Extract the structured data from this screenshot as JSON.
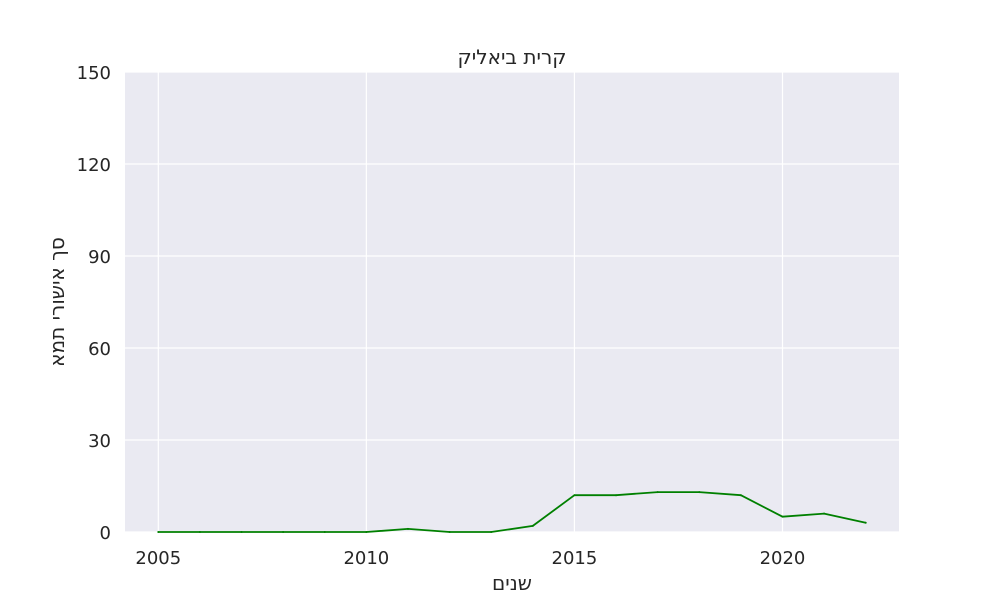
{
  "chart_data": {
    "type": "line",
    "title": "קרית ביאליק",
    "xlabel": "שנים",
    "ylabel": "סך אישורי תמא",
    "xlim": [
      2004.2,
      2022.8
    ],
    "ylim": [
      0,
      150
    ],
    "x_ticks": [
      2005,
      2010,
      2015,
      2020
    ],
    "y_ticks": [
      0,
      30,
      60,
      90,
      120,
      150
    ],
    "grid": true,
    "colors": {
      "line": "#008000",
      "plot_background": "#eaeaf2",
      "grid": "#ffffff"
    },
    "series": [
      {
        "x": [
          2005,
          2006,
          2007,
          2008,
          2009,
          2010,
          2011,
          2012,
          2013,
          2014,
          2015,
          2016,
          2017,
          2018,
          2019,
          2020,
          2021,
          2022
        ],
        "values": [
          0,
          0,
          0,
          0,
          0,
          0,
          1,
          0,
          0,
          2,
          12,
          12,
          13,
          13,
          12,
          5,
          6,
          3
        ]
      }
    ]
  }
}
